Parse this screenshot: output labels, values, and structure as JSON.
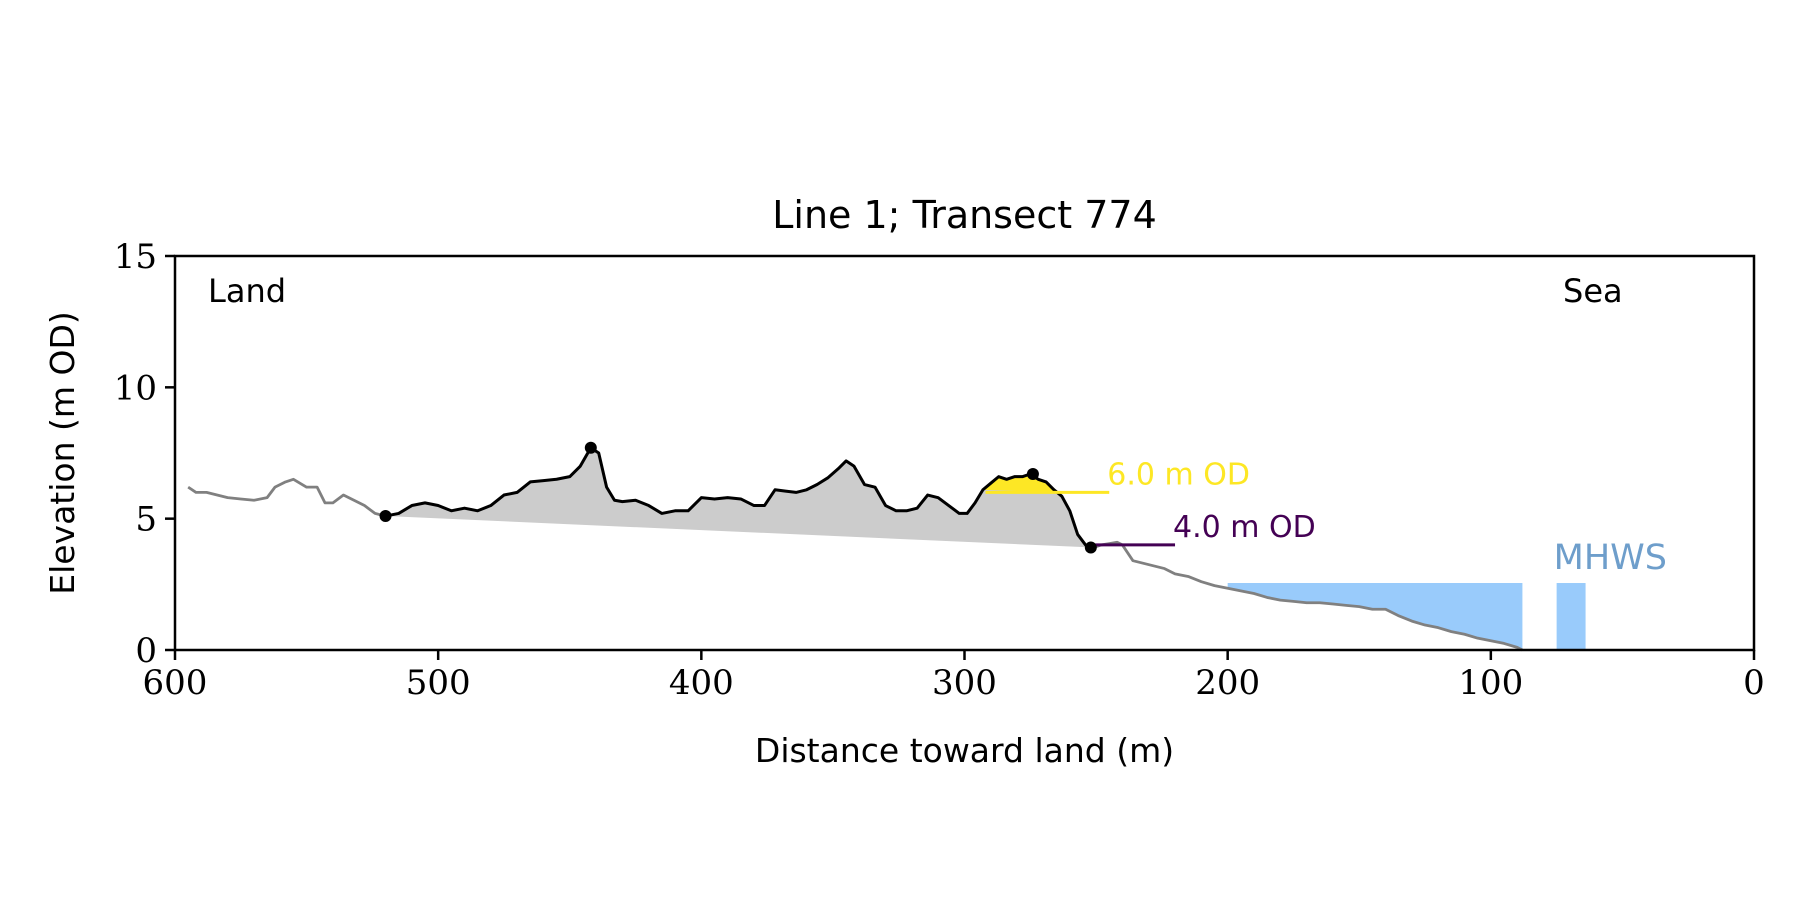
{
  "chart_data": {
    "type": "line",
    "title": "Line 1; Transect 774",
    "xlabel": "Distance toward land (m)",
    "ylabel": "Elevation (m OD)",
    "xlim": [
      600,
      0
    ],
    "ylim": [
      0,
      15
    ],
    "x_ticks": [
      600,
      500,
      400,
      300,
      200,
      100,
      0
    ],
    "y_ticks": [
      0,
      5,
      10,
      15
    ],
    "x_tick_labels": [
      "600",
      "500",
      "400",
      "300",
      "200",
      "100",
      "0"
    ],
    "y_tick_labels": [
      "0",
      "5",
      "10",
      "15"
    ],
    "grid": false,
    "land_label": "Land",
    "sea_label": "Sea",
    "colors": {
      "profile_outer": "#808080",
      "profile_dune": "#000000",
      "dune_fill": "#cccccc",
      "above_6m_fill": "#fde725",
      "level_6m": "#fde725",
      "level_4m": "#440154",
      "mhws_fill": "#99cbfb",
      "mhws_text": "#6e9ecb"
    },
    "series": [
      {
        "role": "profile",
        "x": [
          595,
          592,
          588,
          584,
          580,
          575,
          570,
          565,
          562,
          558,
          555,
          550,
          546,
          543,
          540,
          536,
          532,
          528,
          524,
          520
        ],
        "y": [
          6.2,
          6.0,
          6.0,
          5.9,
          5.8,
          5.75,
          5.7,
          5.8,
          6.2,
          6.4,
          6.5,
          6.2,
          6.2,
          5.6,
          5.6,
          5.9,
          5.7,
          5.5,
          5.2,
          5.1
        ]
      },
      {
        "role": "dune",
        "x": [
          520,
          515,
          510,
          505,
          500,
          495,
          490,
          485,
          480,
          475,
          470,
          465,
          460,
          455,
          450,
          446,
          442,
          439,
          436,
          433,
          430,
          425,
          420,
          415,
          410,
          405,
          400,
          395,
          390,
          385,
          380,
          376,
          372,
          368,
          364,
          360,
          356,
          352,
          348,
          345,
          342,
          338,
          334,
          330,
          326,
          322,
          318,
          314,
          310,
          306,
          302,
          299,
          296,
          293,
          290,
          287,
          284,
          281,
          278,
          275,
          272,
          269,
          266,
          263,
          260,
          257,
          254,
          251
        ],
        "y": [
          5.1,
          5.2,
          5.5,
          5.6,
          5.5,
          5.3,
          5.4,
          5.3,
          5.5,
          5.9,
          6.0,
          6.4,
          6.45,
          6.5,
          6.6,
          7.0,
          7.7,
          7.5,
          6.2,
          5.7,
          5.65,
          5.7,
          5.5,
          5.2,
          5.3,
          5.3,
          5.8,
          5.75,
          5.8,
          5.75,
          5.5,
          5.5,
          6.1,
          6.05,
          6.0,
          6.1,
          6.3,
          6.55,
          6.9,
          7.2,
          7.0,
          6.3,
          6.2,
          5.5,
          5.3,
          5.3,
          5.4,
          5.9,
          5.8,
          5.5,
          5.2,
          5.2,
          5.6,
          6.1,
          6.35,
          6.6,
          6.5,
          6.6,
          6.6,
          6.7,
          6.5,
          6.4,
          6.1,
          5.85,
          5.3,
          4.4,
          4.0,
          3.9
        ]
      },
      {
        "role": "profile",
        "x": [
          251,
          248,
          245,
          242,
          240,
          238,
          236,
          232,
          228,
          224,
          220,
          215,
          210,
          205,
          200,
          195,
          190,
          185,
          180,
          175,
          170,
          165,
          160,
          155,
          150,
          145,
          140,
          135,
          130,
          125,
          120,
          115,
          110,
          105,
          100,
          95,
          90,
          88
        ],
        "y": [
          3.9,
          4.0,
          4.05,
          4.1,
          4.0,
          3.7,
          3.4,
          3.3,
          3.2,
          3.1,
          2.9,
          2.8,
          2.6,
          2.45,
          2.35,
          2.25,
          2.15,
          2.0,
          1.9,
          1.85,
          1.8,
          1.8,
          1.75,
          1.7,
          1.65,
          1.55,
          1.55,
          1.3,
          1.1,
          0.95,
          0.85,
          0.7,
          0.6,
          0.45,
          0.35,
          0.25,
          0.1,
          0.0
        ]
      }
    ],
    "dune_endpoints": [
      {
        "x": 520,
        "y": 5.1
      },
      {
        "x": 442,
        "y": 7.7
      },
      {
        "x": 274,
        "y": 6.7
      },
      {
        "x": 252,
        "y": 3.9
      }
    ],
    "levels": [
      {
        "label": "6.0 m OD",
        "elevation": 6.0,
        "x_start": 292,
        "x_end": 245
      },
      {
        "label": "4.0 m OD",
        "elevation": 4.0,
        "x_start": 252,
        "x_end": 220
      }
    ],
    "mhws": {
      "label": "MHWS",
      "elevation": 2.55,
      "x_start": 200,
      "x_end": 88,
      "x_block": [
        75,
        64
      ]
    }
  }
}
